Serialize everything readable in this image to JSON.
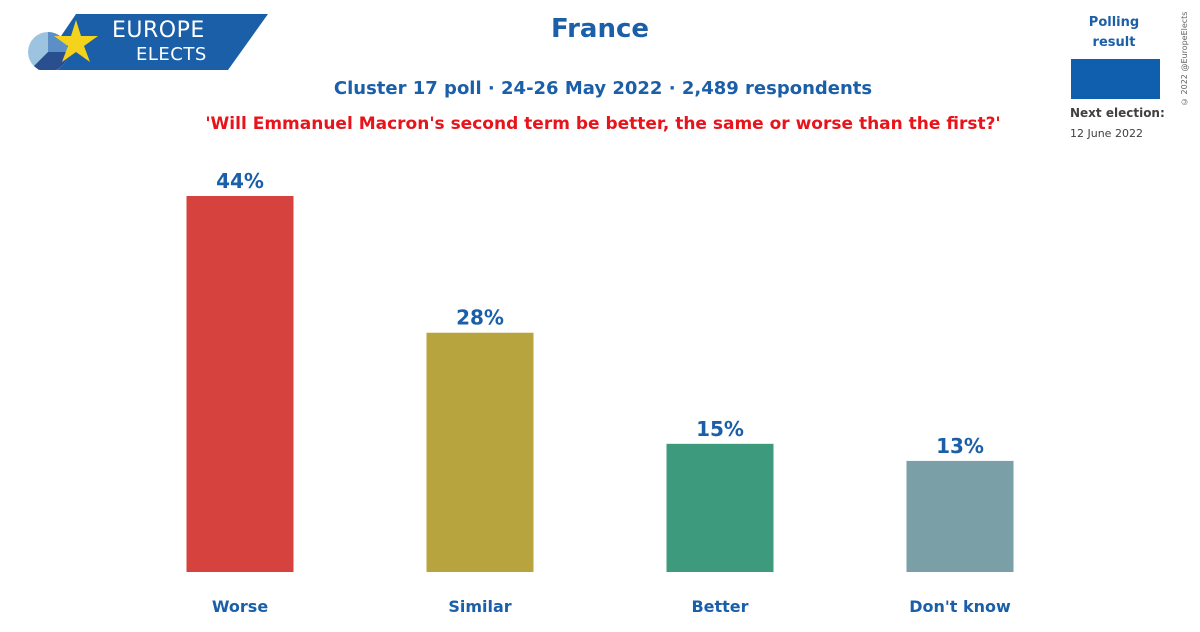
{
  "logo": {
    "line1": "EUROPE",
    "line2": "ELECTS"
  },
  "header": {
    "title": "France",
    "subtitle": "Cluster 17 poll · 24-26 May 2022 · 2,489 respondents",
    "question": "'Will Emmanuel Macron's second term be better, the same or worse than the first?'"
  },
  "legend": {
    "label": "Polling result",
    "swatch_color": "#0f5fae",
    "next_election_label": "Next election:",
    "next_election_date": "12 June 2022"
  },
  "copyright": "© 2022 @EuropeElects",
  "chart_data": {
    "type": "bar",
    "categories": [
      "Worse",
      "Similar",
      "Better",
      "Don't know"
    ],
    "values": [
      44,
      28,
      15,
      13
    ],
    "value_labels": [
      "44%",
      "28%",
      "15%",
      "13%"
    ],
    "colors": [
      "#d6433e",
      "#b8a43e",
      "#3d9a7c",
      "#7a9fa6"
    ],
    "title": "France",
    "ylim": [
      0,
      44
    ],
    "grid": false,
    "legend": "top-right"
  }
}
